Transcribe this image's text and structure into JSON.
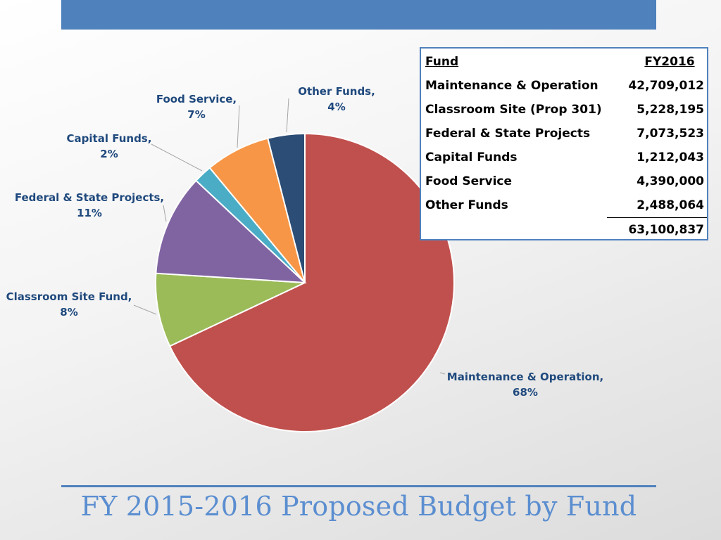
{
  "slide": {
    "title": "FY 2015-2016 Proposed Budget by Fund"
  },
  "colors": {
    "accent": "#4f81bd",
    "title": "#5b8ed0",
    "label": "#1f497d"
  },
  "chart_data": {
    "type": "pie",
    "start_angle_deg": 0,
    "direction": "clockwise",
    "slices": [
      {
        "name": "Maintenance & Operation",
        "value": 68,
        "value_text": "68%",
        "color": "#c0504d"
      },
      {
        "name": "Classroom Site Fund",
        "value": 8,
        "value_text": "8%",
        "color": "#9bbb59"
      },
      {
        "name": "Federal & State Projects",
        "value": 11,
        "value_text": "11%",
        "color": "#8064a2"
      },
      {
        "name": "Capital Funds",
        "value": 2,
        "value_text": "2%",
        "color": "#4bacc6"
      },
      {
        "name": "Food Service",
        "value": 7,
        "value_text": "7%",
        "color": "#f79646"
      },
      {
        "name": "Other Funds",
        "value": 4,
        "value_text": "4%",
        "color": "#2c4d75"
      }
    ]
  },
  "fund_table": {
    "headers": {
      "fund": "Fund",
      "year": "FY2016"
    },
    "rows": [
      {
        "fund": "Maintenance & Operation",
        "amount": "42,709,012"
      },
      {
        "fund": "Classroom Site (Prop 301)",
        "amount": "5,228,195"
      },
      {
        "fund": "Federal & State Projects",
        "amount": "7,073,523"
      },
      {
        "fund": "Capital Funds",
        "amount": "1,212,043"
      },
      {
        "fund": "Food Service",
        "amount": "4,390,000"
      },
      {
        "fund": "Other Funds",
        "amount": "2,488,064"
      }
    ],
    "total": "63,100,837"
  }
}
